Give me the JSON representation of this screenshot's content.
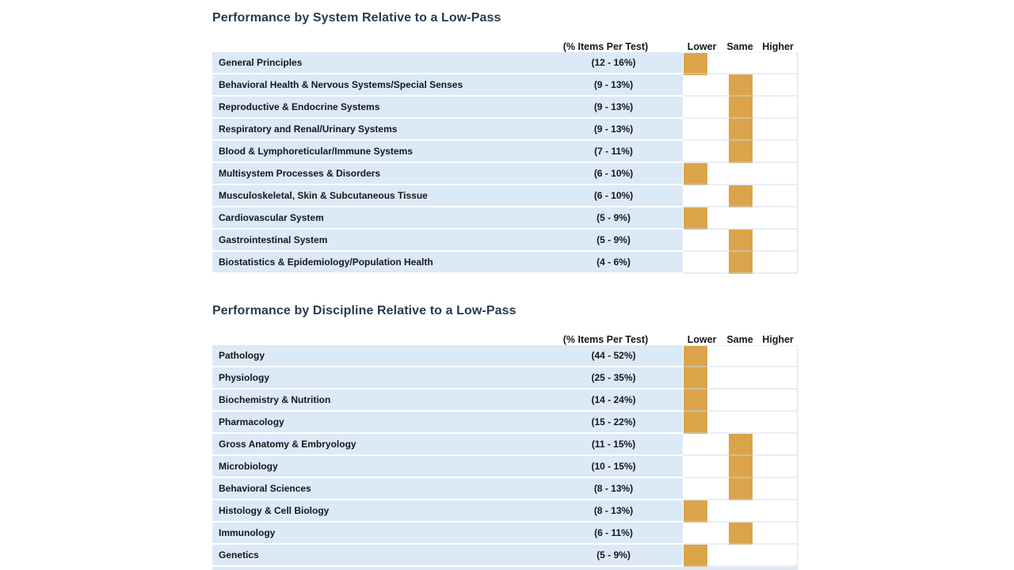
{
  "report": {
    "colors": {
      "bar_fill": "#DBA44B",
      "row_background": "#DCE9F6",
      "title_text": "#273B51",
      "body_text": "#14181C",
      "grid_line": "#D7E5F3"
    },
    "tables": [
      {
        "title": "Performance by System Relative to a Low-Pass",
        "percent_header": "(% Items Per Test)",
        "rating_headers": [
          "Lower",
          "Same",
          "Higher"
        ],
        "rows": [
          {
            "label": "General Principles",
            "percent": "(12 - 16%)",
            "rating": "Lower"
          },
          {
            "label": "Behavioral Health & Nervous Systems/Special Senses",
            "percent": "(9 - 13%)",
            "rating": "Same"
          },
          {
            "label": "Reproductive & Endocrine Systems",
            "percent": "(9 - 13%)",
            "rating": "Same"
          },
          {
            "label": "Respiratory and Renal/Urinary Systems",
            "percent": "(9 - 13%)",
            "rating": "Same"
          },
          {
            "label": "Blood & Lymphoreticular/Immune Systems",
            "percent": "(7 - 11%)",
            "rating": "Same"
          },
          {
            "label": "Multisystem Processes & Disorders",
            "percent": "(6 - 10%)",
            "rating": "Lower"
          },
          {
            "label": "Musculoskeletal, Skin & Subcutaneous Tissue",
            "percent": "(6 - 10%)",
            "rating": "Same"
          },
          {
            "label": "Cardiovascular System",
            "percent": "(5 - 9%)",
            "rating": "Lower"
          },
          {
            "label": "Gastrointestinal System",
            "percent": "(5 - 9%)",
            "rating": "Same"
          },
          {
            "label": "Biostatistics & Epidemiology/Population Health",
            "percent": "(4 - 6%)",
            "rating": "Same"
          }
        ]
      },
      {
        "title": "Performance by Discipline Relative to a Low-Pass",
        "percent_header": "(% Items Per Test)",
        "rating_headers": [
          "Lower",
          "Same",
          "Higher"
        ],
        "rows": [
          {
            "label": "Pathology",
            "percent": "(44 - 52%)",
            "rating": "Lower"
          },
          {
            "label": "Physiology",
            "percent": "(25 - 35%)",
            "rating": "Lower"
          },
          {
            "label": "Biochemistry & Nutrition",
            "percent": "(14 - 24%)",
            "rating": "Lower"
          },
          {
            "label": "Pharmacology",
            "percent": "(15 - 22%)",
            "rating": "Lower"
          },
          {
            "label": "Gross Anatomy & Embryology",
            "percent": "(11 - 15%)",
            "rating": "Same"
          },
          {
            "label": "Microbiology",
            "percent": "(10 - 15%)",
            "rating": "Same"
          },
          {
            "label": "Behavioral Sciences",
            "percent": "(8 - 13%)",
            "rating": "Same"
          },
          {
            "label": "Histology & Cell Biology",
            "percent": "(8 - 13%)",
            "rating": "Lower"
          },
          {
            "label": "Immunology",
            "percent": "(6 - 11%)",
            "rating": "Same"
          },
          {
            "label": "Genetics",
            "percent": "(5 - 9%)",
            "rating": "Lower"
          }
        ]
      }
    ]
  }
}
